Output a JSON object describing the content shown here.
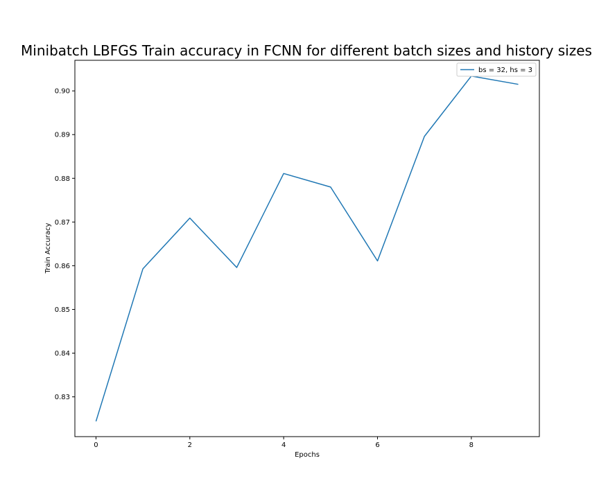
{
  "chart_data": {
    "type": "line",
    "title": "Minibatch LBFGS Train accuracy in FCNN for different batch sizes and history sizes",
    "xlabel": "Epochs",
    "ylabel": "Train Accuracy",
    "x": [
      0,
      1,
      2,
      3,
      4,
      5,
      6,
      7,
      8,
      9
    ],
    "series": [
      {
        "name": "bs = 32, hs = 3",
        "color": "#1f77b4",
        "values": [
          0.8244,
          0.8593,
          0.8709,
          0.8596,
          0.8811,
          0.878,
          0.8611,
          0.8896,
          0.9034,
          0.9015
        ]
      }
    ],
    "xlim": [
      -0.45,
      9.45
    ],
    "ylim": [
      0.8209,
      0.907
    ],
    "xticks": [
      0,
      2,
      4,
      6,
      8
    ],
    "xtick_labels": [
      "0",
      "2",
      "4",
      "6",
      "8"
    ],
    "yticks": [
      0.83,
      0.84,
      0.85,
      0.86,
      0.87,
      0.88,
      0.89,
      0.9
    ],
    "ytick_labels": [
      "0.83",
      "0.84",
      "0.85",
      "0.86",
      "0.87",
      "0.88",
      "0.89",
      "0.90"
    ],
    "grid": false,
    "legend_position": "top-right"
  }
}
